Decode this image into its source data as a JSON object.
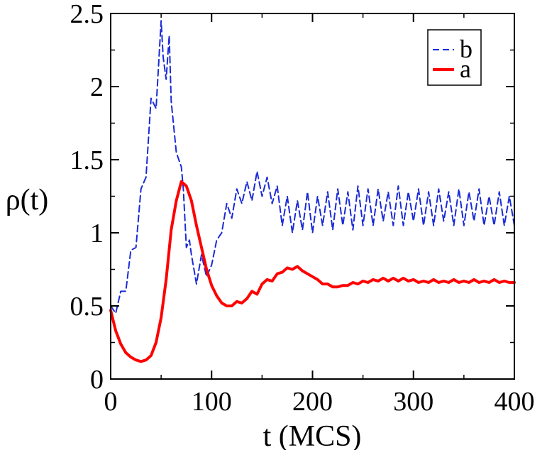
{
  "chart_data": {
    "type": "line",
    "title": "",
    "xlabel": "t (MCS)",
    "ylabel": "ρ(t)",
    "xlim": [
      0,
      400
    ],
    "ylim": [
      0,
      2.5
    ],
    "x_ticks": [
      "0",
      "100",
      "200",
      "300",
      "400"
    ],
    "y_ticks": [
      "0",
      "0.5",
      "1",
      "1.5",
      "2",
      "2.5"
    ],
    "grid": false,
    "legend_position": "top-right",
    "series": [
      {
        "name": "b",
        "color": "#1a2bd6",
        "style": "dashed",
        "x": [
          0,
          5,
          10,
          15,
          20,
          25,
          30,
          35,
          40,
          45,
          50,
          52,
          55,
          58,
          60,
          65,
          70,
          72,
          75,
          78,
          80,
          85,
          90,
          95,
          100,
          105,
          110,
          115,
          120,
          125,
          130,
          135,
          140,
          145,
          150,
          155,
          160,
          165,
          170,
          175,
          180,
          185,
          190,
          195,
          200,
          205,
          210,
          215,
          220,
          225,
          230,
          235,
          240,
          245,
          250,
          255,
          260,
          265,
          270,
          275,
          280,
          285,
          290,
          295,
          300,
          305,
          310,
          315,
          320,
          325,
          330,
          335,
          340,
          345,
          350,
          355,
          360,
          365,
          370,
          375,
          380,
          385,
          390,
          395,
          400
        ],
        "values": [
          0.5,
          0.45,
          0.6,
          0.6,
          0.88,
          0.9,
          1.3,
          1.38,
          1.92,
          1.85,
          2.45,
          2.2,
          2.05,
          2.35,
          1.9,
          1.55,
          1.45,
          1.3,
          0.9,
          0.95,
          0.85,
          0.65,
          0.85,
          0.7,
          0.78,
          0.95,
          1.0,
          1.2,
          1.1,
          1.3,
          1.2,
          1.35,
          1.22,
          1.42,
          1.25,
          1.38,
          1.2,
          1.32,
          1.05,
          1.25,
          1.0,
          1.22,
          1.02,
          1.28,
          1.0,
          1.25,
          1.05,
          1.28,
          1.02,
          1.3,
          1.05,
          1.28,
          1.02,
          1.32,
          1.05,
          1.3,
          1.05,
          1.3,
          1.08,
          1.28,
          1.05,
          1.32,
          1.05,
          1.28,
          1.08,
          1.3,
          1.05,
          1.28,
          1.05,
          1.3,
          1.08,
          1.28,
          1.05,
          1.3,
          1.05,
          1.28,
          1.08,
          1.3,
          1.05,
          1.25,
          1.05,
          1.28,
          1.05,
          1.25,
          1.05
        ]
      },
      {
        "name": "a",
        "color": "#ff0000",
        "style": "solid",
        "x": [
          0,
          5,
          10,
          15,
          20,
          25,
          30,
          35,
          40,
          45,
          50,
          55,
          60,
          65,
          70,
          75,
          80,
          85,
          90,
          95,
          100,
          105,
          110,
          115,
          120,
          125,
          130,
          135,
          140,
          145,
          150,
          155,
          160,
          165,
          170,
          175,
          180,
          185,
          190,
          195,
          200,
          205,
          210,
          215,
          220,
          225,
          230,
          235,
          240,
          245,
          250,
          255,
          260,
          265,
          270,
          275,
          280,
          285,
          290,
          295,
          300,
          305,
          310,
          315,
          320,
          325,
          330,
          335,
          340,
          345,
          350,
          355,
          360,
          365,
          370,
          375,
          380,
          385,
          390,
          395,
          400
        ],
        "values": [
          0.47,
          0.33,
          0.24,
          0.18,
          0.15,
          0.13,
          0.12,
          0.13,
          0.16,
          0.25,
          0.42,
          0.68,
          1.02,
          1.22,
          1.35,
          1.32,
          1.22,
          1.05,
          0.9,
          0.75,
          0.64,
          0.57,
          0.52,
          0.5,
          0.5,
          0.53,
          0.52,
          0.55,
          0.6,
          0.58,
          0.65,
          0.68,
          0.67,
          0.72,
          0.73,
          0.76,
          0.75,
          0.77,
          0.74,
          0.72,
          0.7,
          0.68,
          0.65,
          0.65,
          0.63,
          0.63,
          0.64,
          0.64,
          0.66,
          0.65,
          0.67,
          0.66,
          0.68,
          0.67,
          0.69,
          0.67,
          0.69,
          0.67,
          0.69,
          0.67,
          0.68,
          0.66,
          0.67,
          0.66,
          0.68,
          0.66,
          0.67,
          0.66,
          0.68,
          0.66,
          0.67,
          0.66,
          0.68,
          0.66,
          0.67,
          0.66,
          0.68,
          0.66,
          0.67,
          0.66,
          0.66
        ]
      }
    ],
    "legend_order": [
      "b",
      "a"
    ]
  }
}
